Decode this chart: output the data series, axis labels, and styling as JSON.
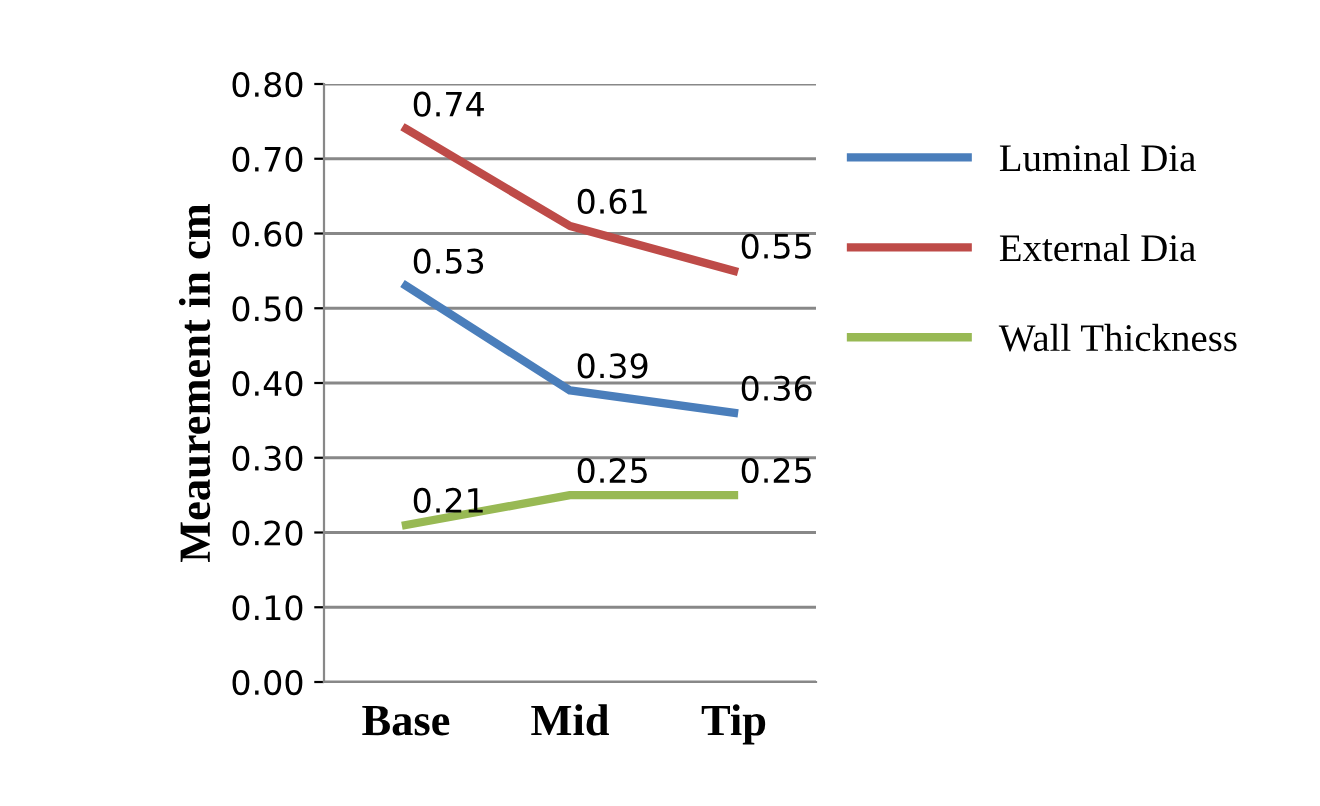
{
  "chart_data": {
    "type": "line",
    "ylabel": "Meaurement in cm",
    "categories": [
      "Base",
      "Mid",
      "Tip"
    ],
    "series": [
      {
        "name": "Luminal Dia",
        "color": "#4a7ebb",
        "values": [
          0.53,
          0.39,
          0.36
        ]
      },
      {
        "name": "External Dia",
        "color": "#be4b48",
        "values": [
          0.74,
          0.61,
          0.55
        ]
      },
      {
        "name": "Wall Thickness",
        "color": "#98b954",
        "values": [
          0.21,
          0.25,
          0.25
        ]
      }
    ],
    "ylim": [
      0,
      0.8
    ],
    "yticks": [
      {
        "value": 0,
        "label": "0.00"
      },
      {
        "value": 0.1,
        "label": "0.10"
      },
      {
        "value": 0.2,
        "label": "0.20"
      },
      {
        "value": 0.3,
        "label": "0.30"
      },
      {
        "value": 0.4,
        "label": "0.40"
      },
      {
        "value": 0.5,
        "label": "0.50"
      },
      {
        "value": 0.6,
        "label": "0.60"
      },
      {
        "value": 0.7,
        "label": "0.70"
      },
      {
        "value": 0.8,
        "label": "0.80"
      }
    ],
    "grid": "y",
    "legend": "right",
    "data_labels": true,
    "marker": "none",
    "line_style": "solid"
  }
}
